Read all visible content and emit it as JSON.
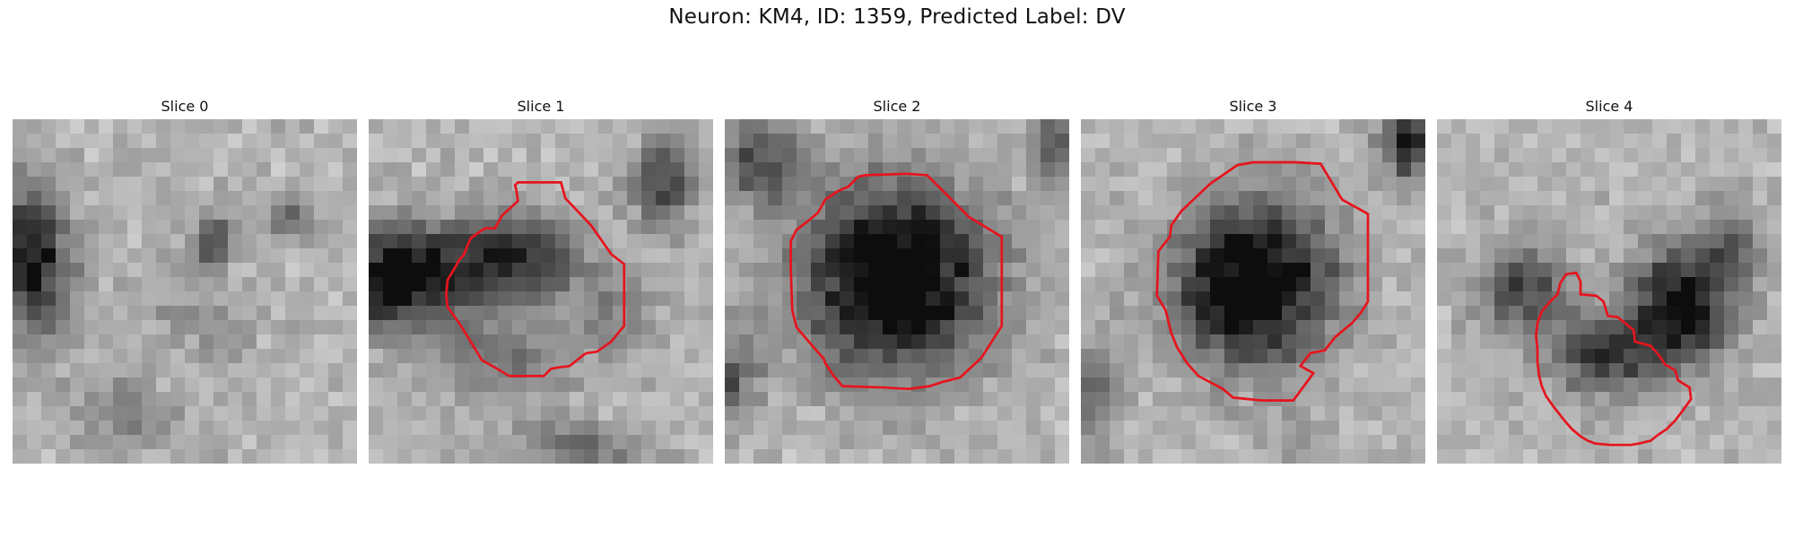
{
  "figure": {
    "title": "Neuron: KM4, ID: 1359, Predicted Label: DV"
  },
  "contour_color": "#e6141e",
  "slices": [
    {
      "title": "Slice 0",
      "has_contour": false
    },
    {
      "title": "Slice 1",
      "has_contour": true
    },
    {
      "title": "Slice 2",
      "has_contour": true
    },
    {
      "title": "Slice 3",
      "has_contour": true
    },
    {
      "title": "Slice 4",
      "has_contour": true
    }
  ]
}
